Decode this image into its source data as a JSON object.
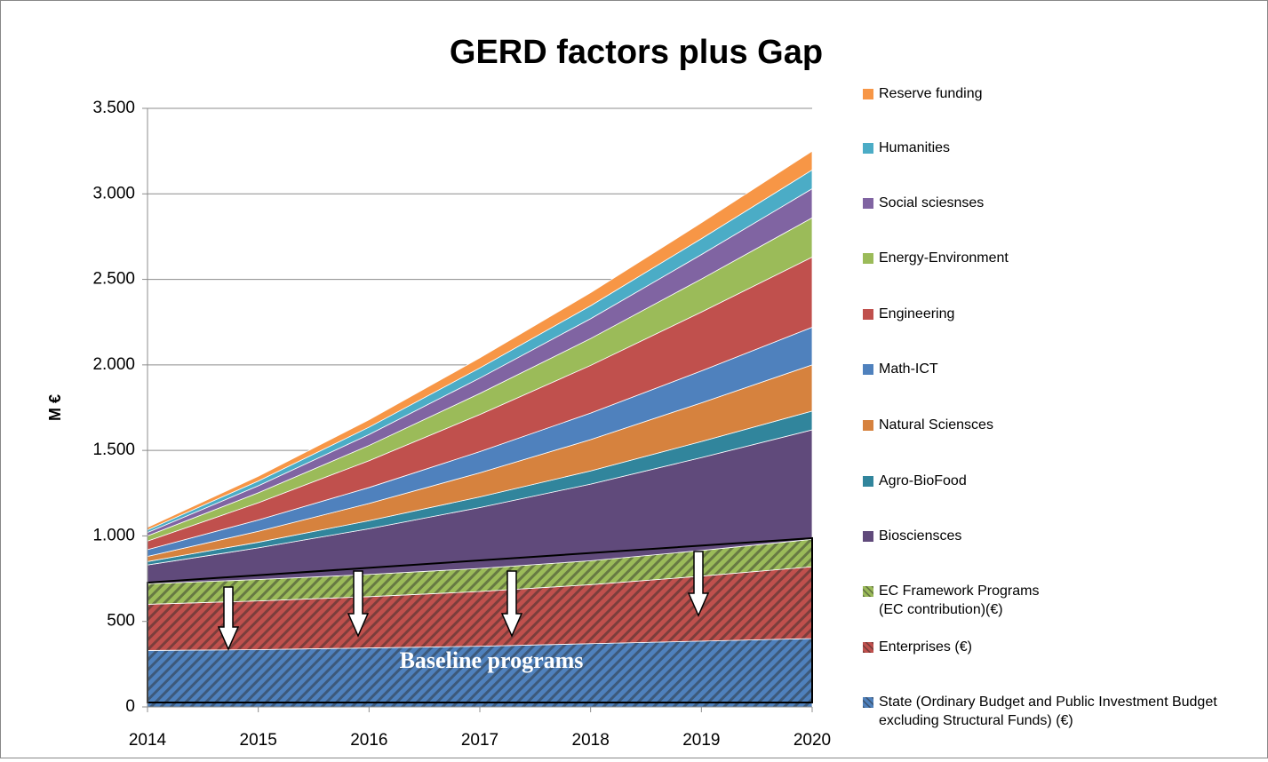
{
  "chart_data": {
    "type": "stacked_area",
    "title": "GERD factors plus Gap",
    "y_label": "M €",
    "annotation": "Baseline programs",
    "x": [
      2014,
      2015,
      2016,
      2017,
      2018,
      2019,
      2020
    ],
    "xlim": [
      2014,
      2020
    ],
    "xticks": [
      2014,
      2015,
      2016,
      2017,
      2018,
      2019,
      2020
    ],
    "ylim": [
      0,
      3500
    ],
    "yticks": [
      0,
      500,
      {
        "value": 1000,
        "label": "1.000"
      },
      {
        "value": 1500,
        "label": "1.500"
      },
      {
        "value": 2000,
        "label": "2.000"
      },
      {
        "value": 2500,
        "label": "2.500"
      },
      {
        "value": 3000,
        "label": "3.000"
      },
      {
        "value": 3500,
        "label": "3.500"
      }
    ],
    "grid": true,
    "legend": "right",
    "series": [
      {
        "name": "State (Ordinary Budget and Public Investment Budget excluding Structural Funds) (€)",
        "color": "#4f81bd",
        "hatched": true,
        "values": [
          330,
          335,
          345,
          355,
          370,
          385,
          400
        ]
      },
      {
        "name": "Enterprises (€)",
        "color": "#c0504d",
        "hatched": true,
        "values": [
          270,
          285,
          300,
          320,
          345,
          380,
          420
        ]
      },
      {
        "name": "EC Framework Programs (EC contribution)(€)",
        "color": "#9bbb59",
        "hatched": true,
        "values": [
          120,
          125,
          130,
          135,
          140,
          150,
          160
        ]
      },
      {
        "name": "Biosciensces",
        "color": "#604a7b",
        "values": [
          110,
          185,
          267,
          356,
          448,
          543,
          640
        ]
      },
      {
        "name": "Agro-BioFood",
        "color": "#31859c",
        "values": [
          20,
          33,
          47,
          62,
          77,
          94,
          110
        ]
      },
      {
        "name": "Natural Sciensces",
        "color": "#d6823e",
        "values": [
          30,
          64,
          101,
          141,
          183,
          226,
          270
        ]
      },
      {
        "name": "Math-ICT",
        "color": "#4f81bd",
        "values": [
          40,
          66,
          93,
          124,
          155,
          187,
          220
        ]
      },
      {
        "name": "Engineering",
        "color": "#c0504d",
        "values": [
          50,
          101,
          157,
          217,
          279,
          344,
          410
        ]
      },
      {
        "name": "Energy-Environment",
        "color": "#9bbb59",
        "values": [
          30,
          58,
          89,
          123,
          157,
          193,
          230
        ]
      },
      {
        "name": "Social sciesnses",
        "color": "#8064a2",
        "values": [
          20,
          41,
          64,
          90,
          116,
          143,
          170
        ]
      },
      {
        "name": "Humanities",
        "color": "#4bacc6",
        "values": [
          15,
          28,
          43,
          59,
          76,
          93,
          110
        ]
      },
      {
        "name": "Reserve funding",
        "color": "#f79646",
        "values": [
          15,
          28,
          43,
          59,
          76,
          93,
          110
        ]
      }
    ]
  }
}
